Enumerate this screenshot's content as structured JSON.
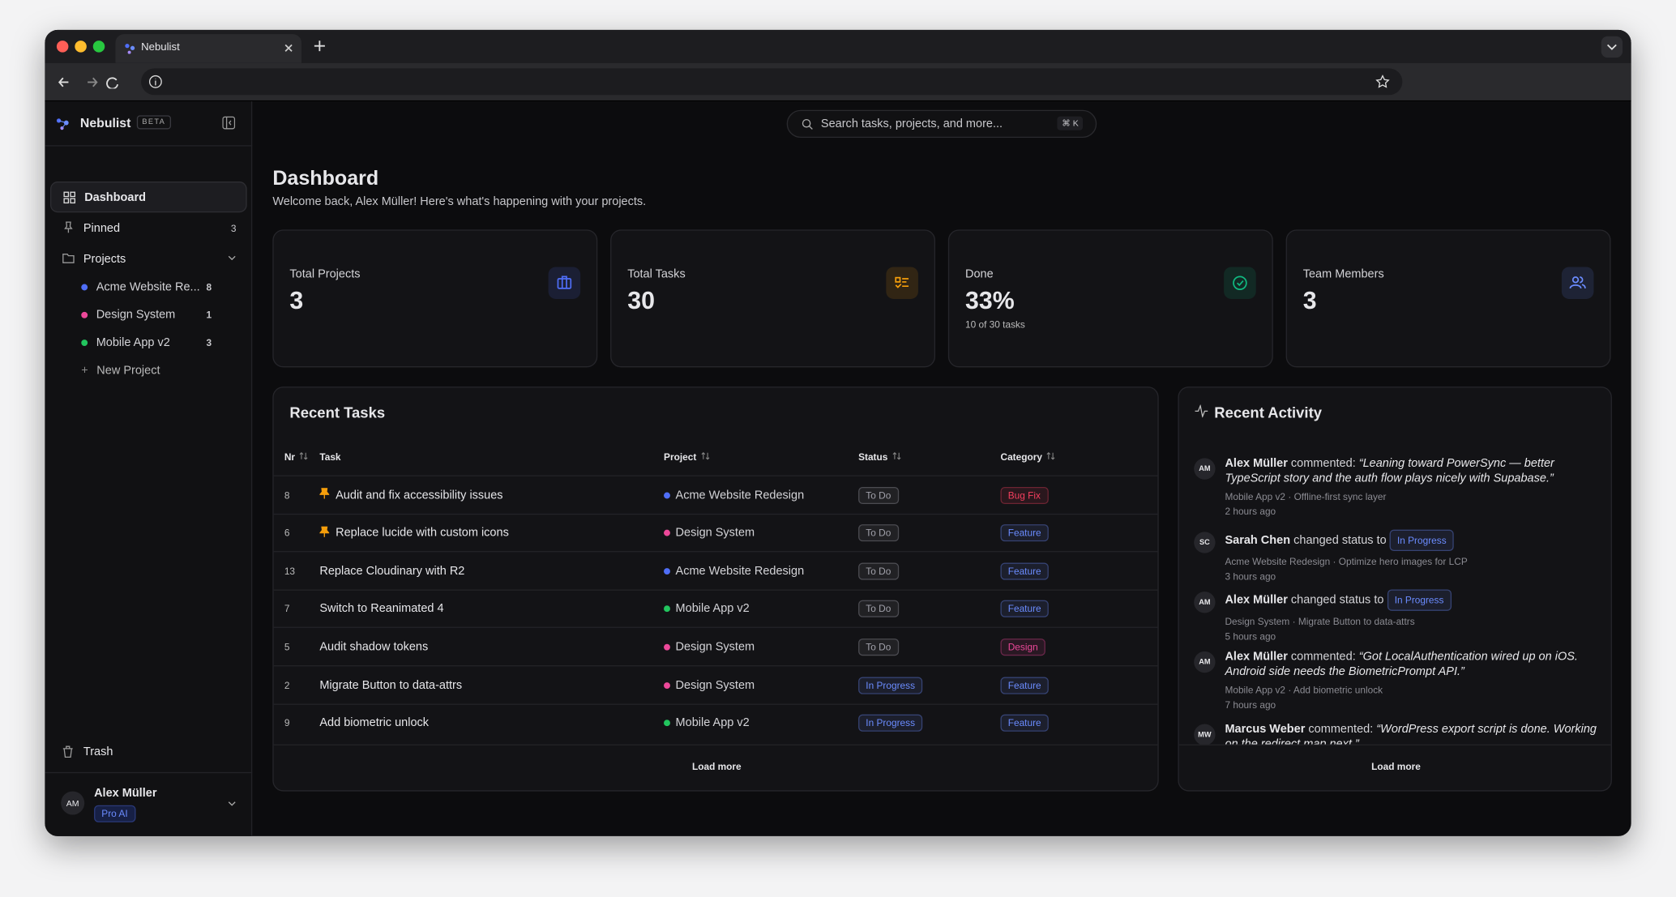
{
  "browser": {
    "tab_title": "Nebulist"
  },
  "sidebar": {
    "app_name": "Nebulist",
    "badge": "BETA",
    "nav": [
      {
        "label": "Dashboard"
      },
      {
        "label": "Pinned",
        "count": 3
      },
      {
        "label": "Projects"
      }
    ],
    "projects": [
      {
        "name": "Acme Website Re...",
        "count": 8,
        "color": "#4f6ef7"
      },
      {
        "name": "Design System",
        "count": 1,
        "color": "#ec4899"
      },
      {
        "name": "Mobile App v2",
        "count": 3,
        "color": "#22c55e"
      }
    ],
    "new_project": "New Project",
    "trash": "Trash",
    "user": {
      "initials": "AM",
      "name": "Alex Müller",
      "plan": "Pro AI"
    }
  },
  "search": {
    "placeholder": "Search tasks, projects, and more...",
    "shortcut": "⌘ K"
  },
  "header": {
    "title": "Dashboard",
    "subtitle": "Welcome back, Alex Müller! Here's what's happening with your projects."
  },
  "stats": [
    {
      "label": "Total Projects",
      "value": 3,
      "icon_color": "#4f6ef7"
    },
    {
      "label": "Total Tasks",
      "value": 30,
      "icon_color": "#f59e0b"
    },
    {
      "label": "Done",
      "value": "33%",
      "note": "10 of 30 tasks",
      "icon_color": "#10b981"
    },
    {
      "label": "Team Members",
      "value": 3,
      "icon_color": "#6b8cff"
    }
  ],
  "tasks": {
    "title": "Recent Tasks",
    "columns": [
      "Nr",
      "Task",
      "Project",
      "Status",
      "Category"
    ],
    "rows": [
      {
        "nr": 8,
        "pinned": true,
        "task": "Audit and fix accessibility issues",
        "project": "Acme Website Redesign",
        "project_color": "#4f6ef7",
        "status": "To Do",
        "status_color": "#a1a1aa",
        "category": "Bug Fix",
        "category_color": "#f43f5e"
      },
      {
        "nr": 6,
        "pinned": true,
        "task": "Replace lucide with custom icons",
        "project": "Design System",
        "project_color": "#ec4899",
        "status": "To Do",
        "status_color": "#a1a1aa",
        "category": "Feature",
        "category_color": "#6b8cff"
      },
      {
        "nr": 13,
        "pinned": false,
        "task": "Replace Cloudinary with R2",
        "project": "Acme Website Redesign",
        "project_color": "#4f6ef7",
        "status": "To Do",
        "status_color": "#a1a1aa",
        "category": "Feature",
        "category_color": "#6b8cff"
      },
      {
        "nr": 7,
        "pinned": false,
        "task": "Switch to Reanimated 4",
        "project": "Mobile App v2",
        "project_color": "#22c55e",
        "status": "To Do",
        "status_color": "#a1a1aa",
        "category": "Feature",
        "category_color": "#6b8cff"
      },
      {
        "nr": 5,
        "pinned": false,
        "task": "Audit shadow tokens",
        "project": "Design System",
        "project_color": "#ec4899",
        "status": "To Do",
        "status_color": "#a1a1aa",
        "category": "Design",
        "category_color": "#ec4899"
      },
      {
        "nr": 2,
        "pinned": false,
        "task": "Migrate Button to data-attrs",
        "project": "Design System",
        "project_color": "#ec4899",
        "status": "In Progress",
        "status_color": "#6b8cff",
        "category": "Feature",
        "category_color": "#6b8cff"
      },
      {
        "nr": 9,
        "pinned": false,
        "task": "Add biometric unlock",
        "project": "Mobile App v2",
        "project_color": "#22c55e",
        "status": "In Progress",
        "status_color": "#6b8cff",
        "category": "Feature",
        "category_color": "#6b8cff"
      }
    ],
    "load_more": "Load more"
  },
  "activity": {
    "title": "Recent Activity",
    "items": [
      {
        "initials": "AM",
        "actor": "Alex Müller",
        "action": "commented:",
        "quote": "“Leaning toward PowerSync — better TypeScript story and the auth flow plays nicely with Supabase.”",
        "context": "Mobile App v2 · Offline-first sync layer",
        "time": "2 hours ago"
      },
      {
        "initials": "SC",
        "actor": "Sarah Chen",
        "action": "changed status to",
        "status": "In Progress",
        "context": "Acme Website Redesign · Optimize hero images for LCP",
        "time": "3 hours ago"
      },
      {
        "initials": "AM",
        "actor": "Alex Müller",
        "action": "changed status to",
        "status": "In Progress",
        "context": "Design System · Migrate Button to data-attrs",
        "time": "5 hours ago"
      },
      {
        "initials": "AM",
        "actor": "Alex Müller",
        "action": "commented:",
        "quote": "“Got LocalAuthentication wired up on iOS. Android side needs the BiometricPrompt API.”",
        "context": "Mobile App v2 · Add biometric unlock",
        "time": "7 hours ago"
      },
      {
        "initials": "MW",
        "actor": "Marcus Weber",
        "action": "commented:",
        "quote": "“WordPress export script is done. Working on the redirect map next.”"
      }
    ],
    "load_more": "Load more"
  }
}
